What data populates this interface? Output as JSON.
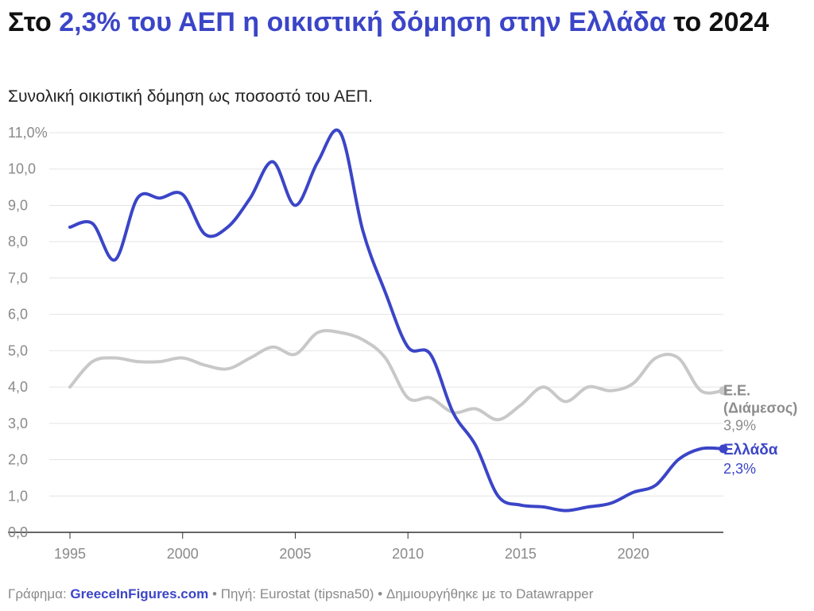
{
  "title": {
    "part1": "Στο ",
    "highlight": "2,3% του ΑΕΠ η οικιστική δόμηση στην Ελλάδα",
    "part2": " το 2024"
  },
  "subtitle": "Συνολική οικιστική δόμηση ως ποσοστό του ΑΕΠ.",
  "footer": {
    "graph_label": "Γράφημα:",
    "brand": "GreeceInFigures.com",
    "separator": "•",
    "source": "Πηγή: Eurostat (tipsna50)",
    "made_with": "Δημιουργήθηκε με το Datawrapper"
  },
  "colors": {
    "greece": "#3b45c7",
    "eu": "#c8c8c8",
    "grid": "#e4e4e4",
    "axis": "#333333",
    "tick_text": "#8a8a8a"
  },
  "chart_data": {
    "type": "line",
    "title": "Στο 2,3% του ΑΕΠ η οικιστική δόμηση στην Ελλάδα το 2024",
    "subtitle": "Συνολική οικιστική δόμηση ως ποσοστό του ΑΕΠ.",
    "xlabel": "",
    "ylabel": "",
    "xlim": [
      1995,
      2024
    ],
    "ylim": [
      0,
      11
    ],
    "x_ticks": [
      1995,
      2000,
      2005,
      2010,
      2015,
      2020
    ],
    "y_ticks": [
      0,
      1,
      2,
      3,
      4,
      5,
      6,
      7,
      8,
      9,
      10,
      11
    ],
    "y_tick_labels": [
      "0,0",
      "1,0",
      "2,0",
      "3,0",
      "4,0",
      "5,0",
      "6,0",
      "7,0",
      "8,0",
      "9,0",
      "10,0",
      "11,0%"
    ],
    "grid": true,
    "legend": "direct labels at line ends (right)",
    "x": [
      1995,
      1996,
      1997,
      1998,
      1999,
      2000,
      2001,
      2002,
      2003,
      2004,
      2005,
      2006,
      2007,
      2008,
      2009,
      2010,
      2011,
      2012,
      2013,
      2014,
      2015,
      2016,
      2017,
      2018,
      2019,
      2020,
      2021,
      2022,
      2023,
      2024
    ],
    "series": [
      {
        "name": "Ε.Ε. (Διάμεσος)",
        "end_label": [
          "Ε.Ε.",
          "(Διάμεσος)"
        ],
        "end_value": "3,9%",
        "color": "#c8c8c8",
        "values": [
          4.0,
          4.7,
          4.8,
          4.7,
          4.7,
          4.8,
          4.6,
          4.5,
          4.8,
          5.1,
          4.9,
          5.5,
          5.5,
          5.3,
          4.8,
          3.7,
          3.7,
          3.3,
          3.4,
          3.1,
          3.5,
          4.0,
          3.6,
          4.0,
          3.9,
          4.1,
          4.8,
          4.8,
          3.9,
          3.9
        ]
      },
      {
        "name": "Ελλάδα",
        "end_label": [
          "Ελλάδα"
        ],
        "end_value": "2,3%",
        "color": "#3b45c7",
        "values": [
          8.4,
          8.5,
          7.5,
          9.2,
          9.2,
          9.3,
          8.2,
          8.4,
          9.2,
          10.2,
          9.0,
          10.2,
          11.0,
          8.3,
          6.6,
          5.1,
          4.9,
          3.3,
          2.4,
          1.0,
          0.75,
          0.7,
          0.6,
          0.7,
          0.8,
          1.1,
          1.3,
          2.0,
          2.3,
          2.3
        ]
      }
    ]
  }
}
